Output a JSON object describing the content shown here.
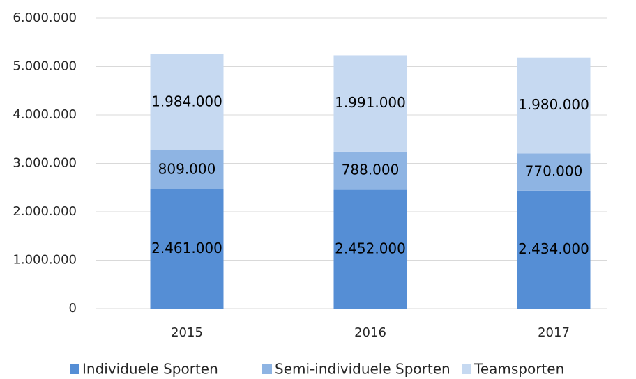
{
  "chart_data": {
    "type": "stacked_bar",
    "categories": [
      "2015",
      "2016",
      "2017"
    ],
    "series": [
      {
        "name": "Individuele Sporten",
        "color": "#558ed5",
        "values": [
          2461000,
          2452000,
          2434000
        ],
        "value_labels": [
          "2.461.000",
          "2.452.000",
          "2.434.000"
        ]
      },
      {
        "name": "Semi-individuele Sporten",
        "color": "#8eb4e3",
        "values": [
          809000,
          788000,
          770000
        ],
        "value_labels": [
          "809.000",
          "788.000",
          "770.000"
        ]
      },
      {
        "name": "Teamsporten",
        "color": "#c6d9f1",
        "values": [
          1984000,
          1991000,
          1980000
        ],
        "value_labels": [
          "1.984.000",
          "1.991.000",
          "1.980.000"
        ]
      }
    ],
    "ylim": [
      0,
      6000000
    ],
    "yticks": [
      0,
      {
        "value": 1000000,
        "label": "1.000.000"
      },
      {
        "value": 2000000,
        "label": "2.000.000"
      },
      {
        "value": 3000000,
        "label": "3.000.000"
      },
      {
        "value": 4000000,
        "label": "4.000.000"
      },
      {
        "value": 5000000,
        "label": "5.000.000"
      },
      {
        "value": 6000000,
        "label": "6.000.000"
      }
    ],
    "grid": true,
    "legend": "bottom"
  }
}
